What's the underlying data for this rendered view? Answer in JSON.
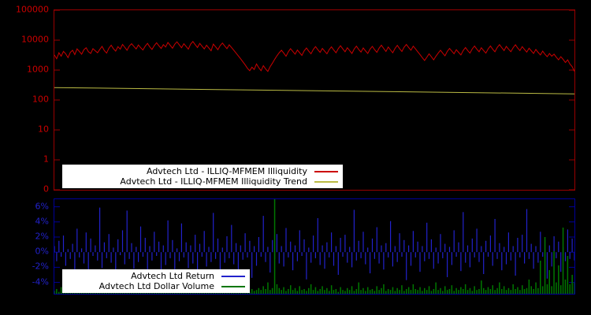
{
  "colors": {
    "background": "#000000",
    "top_border": "#990000",
    "bottom_border": "#000099",
    "top_tick_text": "#cc0000",
    "bottom_tick_text": "#2222cc",
    "illiquidity_line": "#cc0000",
    "trend_line": "#bbbb44",
    "return_bars": "#2222cc",
    "volume_bars": "#007700",
    "legend_bg": "#ffffff"
  },
  "chart_data": [
    {
      "type": "line",
      "title": "",
      "xlabel": "",
      "ylabel": "",
      "yscale": "log",
      "ytick_labels": [
        "100000",
        "10000",
        "1000",
        "100",
        "10",
        "1",
        "0"
      ],
      "ytick_exponents": [
        5,
        4,
        3,
        2,
        1,
        0,
        -1
      ],
      "ylim_exponents": [
        -1,
        5
      ],
      "grid": false,
      "legend_position": "inside bottom-left",
      "series": [
        {
          "name": "Advtech Ltd - ILLIQ-MFMEM Illiquidity",
          "color": "#cc0000",
          "values": [
            3200,
            2400,
            3800,
            2900,
            4200,
            3500,
            2600,
            3900,
            4600,
            3300,
            5100,
            4200,
            3400,
            4800,
            5600,
            4100,
            3600,
            5200,
            4400,
            3800,
            4900,
            6200,
            4500,
            3700,
            5400,
            6800,
            5200,
            4300,
            6100,
            5000,
            7200,
            5800,
            4600,
            6400,
            7600,
            6200,
            5100,
            6900,
            5600,
            4700,
            6300,
            7800,
            6000,
            4900,
            6600,
            8200,
            6500,
            5300,
            7100,
            5900,
            8400,
            6700,
            5400,
            7300,
            8800,
            7000,
            5600,
            7600,
            6200,
            5000,
            7400,
            9000,
            7100,
            5700,
            7800,
            6300,
            5100,
            6800,
            5500,
            4400,
            7400,
            6000,
            4800,
            6600,
            8000,
            6400,
            5200,
            7000,
            5700,
            4600,
            3700,
            3000,
            2400,
            1900,
            1500,
            1150,
            950,
            1250,
            1050,
            1600,
            1200,
            950,
            1400,
            1100,
            900,
            1300,
            1700,
            2300,
            3000,
            3800,
            4600,
            3700,
            2900,
            4100,
            5200,
            4200,
            3400,
            4700,
            3800,
            3100,
            4400,
            5500,
            4300,
            3500,
            4900,
            6100,
            4800,
            3900,
            5300,
            4300,
            3500,
            4800,
            6000,
            4700,
            3800,
            5200,
            6500,
            5100,
            4100,
            5600,
            4500,
            3600,
            5000,
            6300,
            4900,
            4000,
            5500,
            4400,
            3600,
            5000,
            6200,
            4800,
            3900,
            5400,
            6800,
            5300,
            4200,
            5900,
            4700,
            3800,
            5300,
            6700,
            5200,
            4200,
            5800,
            7200,
            5700,
            4600,
            6300,
            5100,
            4100,
            3300,
            2600,
            2100,
            2700,
            3500,
            2800,
            2200,
            2900,
            3700,
            4600,
            3700,
            3000,
            4200,
            5300,
            4300,
            3500,
            4800,
            3900,
            3200,
            4500,
            5700,
            4500,
            3700,
            5100,
            6400,
            5000,
            4100,
            5600,
            4500,
            3700,
            5100,
            6400,
            5000,
            4100,
            5700,
            7100,
            5600,
            4500,
            6200,
            5000,
            4100,
            5600,
            7000,
            5500,
            4500,
            6100,
            4900,
            4000,
            5400,
            4400,
            3600,
            4900,
            3900,
            3200,
            4300,
            3400,
            2800,
            3600,
            2900,
            3400,
            2700,
            2200,
            2800,
            2300,
            1800,
            2200,
            1600,
            1300,
            900
          ]
        },
        {
          "name": "Advtech Ltd - ILLIQ-MFMEM Illiquidity Trend",
          "color": "#bbbb44",
          "values": [
            260,
            160
          ]
        }
      ]
    },
    {
      "type": "bar",
      "title": "",
      "xlabel": "",
      "ylabel": "",
      "ytick_labels": [
        "6%",
        "4%",
        "2%",
        "0%",
        "-2%",
        "-4%"
      ],
      "ytick_values": [
        6,
        4,
        2,
        0,
        -2,
        -4
      ],
      "ylim": [
        -5.5,
        7
      ],
      "grid": false,
      "legend_position": "inside bottom-left",
      "series": [
        {
          "name": "Advtech Ltd Return",
          "color": "#2222cc",
          "unit": "percent",
          "values": [
            0.8,
            -1.2,
            1.5,
            -0.6,
            2.2,
            -1.8,
            0.4,
            -0.9,
            1.1,
            -2.4,
            3.1,
            -0.7,
            0.5,
            -1.5,
            2.6,
            -3.2,
            1.8,
            -0.5,
            0.9,
            -1.1,
            5.9,
            -2.1,
            1.3,
            -0.8,
            2.4,
            -1.4,
            0.6,
            -2.8,
            1.7,
            -0.4,
            2.9,
            -1.6,
            5.5,
            -0.9,
            1.2,
            -2.2,
            0.7,
            -1.3,
            3.4,
            -0.6,
            1.9,
            -3.8,
            0.8,
            -1.1,
            2.7,
            -0.5,
            1.4,
            -2.6,
            0.9,
            -1.7,
            4.2,
            -0.8,
            1.6,
            -2.9,
            0.5,
            -1.2,
            3.8,
            -0.7,
            1.3,
            -2.1,
            0.9,
            -1.5,
            2.3,
            -4.1,
            1.1,
            -0.6,
            2.8,
            -1.9,
            0.7,
            -1.3,
            5.2,
            -0.9,
            1.8,
            -2.5,
            0.6,
            -1.4,
            2.1,
            -0.8,
            3.6,
            -1.6,
            1.2,
            -2.3,
            0.9,
            -1.0,
            2.5,
            -0.7,
            1.5,
            -3.4,
            0.8,
            -1.8,
            2.0,
            -0.6,
            4.8,
            -1.3,
            0.7,
            -2.7,
            1.6,
            -0.9,
            2.4,
            -1.5,
            0.8,
            -1.9,
            3.2,
            -0.7,
            1.4,
            -2.4,
            0.9,
            -1.2,
            2.9,
            -0.5,
            1.7,
            -3.6,
            0.6,
            -1.4,
            2.2,
            -0.8,
            4.5,
            -1.7,
            0.9,
            -2.2,
            1.3,
            -0.7,
            2.6,
            -1.8,
            0.8,
            -3.0,
            1.9,
            -0.6,
            2.3,
            -1.4,
            0.7,
            -2.0,
            5.6,
            -1.1,
            1.5,
            -0.8,
            2.7,
            -1.6,
            0.6,
            -2.8,
            1.8,
            -0.9,
            3.3,
            -1.5,
            0.9,
            -2.3,
            1.2,
            -0.7,
            4.1,
            -1.9,
            0.8,
            -1.3,
            2.5,
            -0.6,
            1.6,
            -3.7,
            0.9,
            -1.8,
            2.8,
            -0.7,
            1.4,
            -2.6,
            0.8,
            -1.2,
            3.9,
            -0.9,
            1.7,
            -2.2,
            0.6,
            -1.5,
            2.4,
            -0.8,
            1.1,
            -3.3,
            0.7,
            -1.7,
            2.9,
            -0.6,
            1.3,
            -2.5,
            5.3,
            -1.4,
            0.9,
            -2.0,
            1.8,
            -0.7,
            3.1,
            -1.3,
            0.8,
            -2.9,
            1.5,
            -0.6,
            2.2,
            -1.8,
            4.4,
            -0.9,
            1.2,
            -2.4,
            0.7,
            -1.6,
            2.6,
            -1.1,
            0.8,
            -3.1,
            1.9,
            -0.7,
            2.3,
            -1.5,
            5.7,
            -0.9,
            1.1,
            -2.2,
            0.8,
            -1.4,
            2.7,
            -0.6,
            1.6,
            -3.5,
            0.9,
            -1.9,
            2.1,
            -0.8,
            1.4,
            -2.6,
            0.7,
            -1.2,
            3.0,
            -0.9,
            1.8,
            -1.1
          ]
        },
        {
          "name": "Advtech Ltd Dollar Volume",
          "color": "#007700",
          "unit": "normalized 0-1 of panel height",
          "values": [
            0.03,
            0.05,
            0.02,
            0.07,
            0.04,
            0.03,
            0.06,
            0.02,
            0.05,
            0.03,
            0.04,
            0.02,
            0.08,
            0.03,
            0.05,
            0.02,
            0.04,
            0.07,
            0.03,
            0.05,
            0.06,
            0.03,
            0.04,
            0.02,
            0.09,
            0.04,
            0.03,
            0.06,
            0.02,
            0.04,
            0.05,
            0.03,
            0.07,
            0.04,
            0.02,
            0.05,
            0.03,
            0.08,
            0.04,
            0.06,
            0.03,
            0.05,
            0.02,
            0.06,
            0.04,
            0.03,
            0.07,
            0.02,
            0.05,
            0.03,
            0.04,
            0.08,
            0.03,
            0.05,
            0.02,
            0.06,
            0.04,
            0.03,
            0.09,
            0.05,
            0.03,
            0.06,
            0.04,
            0.02,
            0.07,
            0.03,
            0.05,
            0.04,
            0.02,
            0.08,
            0.04,
            0.03,
            0.06,
            0.02,
            0.05,
            0.09,
            0.03,
            0.04,
            0.07,
            0.03,
            0.05,
            0.02,
            0.04,
            0.08,
            0.03,
            0.06,
            0.02,
            0.05,
            0.03,
            0.04,
            0.06,
            0.04,
            0.08,
            0.05,
            0.12,
            0.04,
            0.06,
            1.0,
            0.1,
            0.06,
            0.04,
            0.07,
            0.03,
            0.05,
            0.09,
            0.04,
            0.06,
            0.03,
            0.08,
            0.04,
            0.05,
            0.03,
            0.06,
            0.1,
            0.04,
            0.07,
            0.03,
            0.05,
            0.08,
            0.04,
            0.06,
            0.03,
            0.09,
            0.04,
            0.05,
            0.02,
            0.07,
            0.04,
            0.03,
            0.06,
            0.04,
            0.08,
            0.03,
            0.05,
            0.12,
            0.04,
            0.06,
            0.03,
            0.07,
            0.04,
            0.05,
            0.03,
            0.08,
            0.04,
            0.06,
            0.1,
            0.03,
            0.05,
            0.04,
            0.07,
            0.03,
            0.06,
            0.04,
            0.09,
            0.03,
            0.05,
            0.07,
            0.04,
            0.1,
            0.05,
            0.04,
            0.07,
            0.03,
            0.06,
            0.04,
            0.08,
            0.03,
            0.05,
            0.12,
            0.04,
            0.06,
            0.03,
            0.08,
            0.04,
            0.05,
            0.09,
            0.03,
            0.06,
            0.04,
            0.07,
            0.05,
            0.1,
            0.04,
            0.06,
            0.03,
            0.08,
            0.04,
            0.05,
            0.14,
            0.06,
            0.04,
            0.07,
            0.05,
            0.09,
            0.04,
            0.06,
            0.12,
            0.05,
            0.08,
            0.04,
            0.06,
            0.04,
            0.1,
            0.05,
            0.07,
            0.04,
            0.09,
            0.05,
            0.06,
            0.15,
            0.08,
            0.05,
            0.12,
            0.06,
            0.35,
            0.08,
            0.6,
            0.1,
            0.25,
            0.08,
            0.45,
            0.12,
            0.3,
            0.09,
            0.7,
            0.15,
            0.4,
            0.1,
            0.2,
            0.12
          ]
        }
      ]
    }
  ]
}
